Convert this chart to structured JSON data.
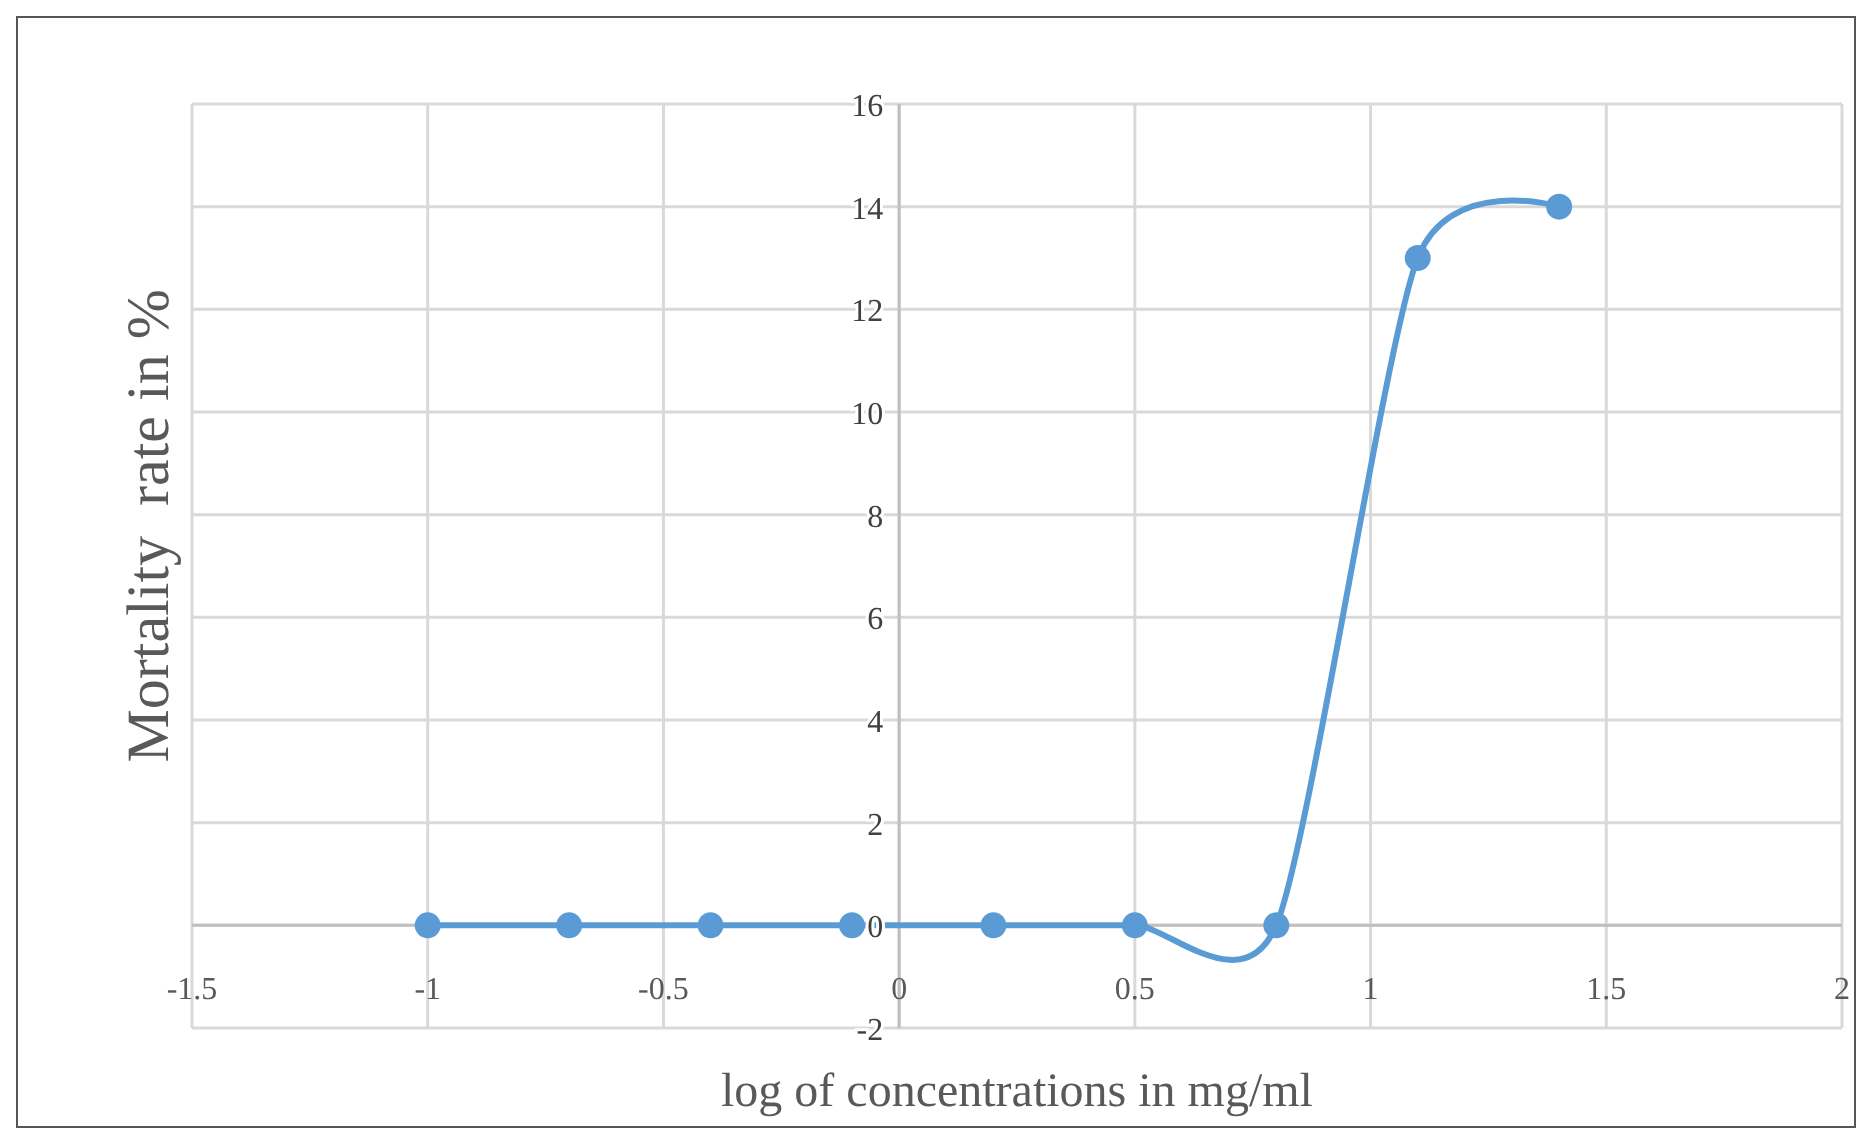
{
  "chart_data": {
    "type": "line",
    "xlabel": "log of concentrations in mg/ml",
    "ylabel": "Mortality  rate in %",
    "x": [
      -1,
      -0.7,
      -0.4,
      -0.1,
      0.2,
      0.5,
      0.8,
      1.1,
      1.4
    ],
    "series": [
      {
        "color": "#5b9bd5",
        "values": [
          0,
          0,
          0,
          0,
          0,
          0,
          0,
          13,
          14
        ]
      }
    ],
    "xlim": [
      -1.5,
      2
    ],
    "xticks": [
      -1.5,
      -1,
      -0.5,
      0,
      0.5,
      1,
      1.5,
      2
    ],
    "ylim": [
      -2,
      16
    ],
    "yticks": [
      -2,
      0,
      2,
      4,
      6,
      8,
      10,
      12,
      14,
      16
    ],
    "grid": true,
    "marker": "circle",
    "line_style": "solid"
  }
}
